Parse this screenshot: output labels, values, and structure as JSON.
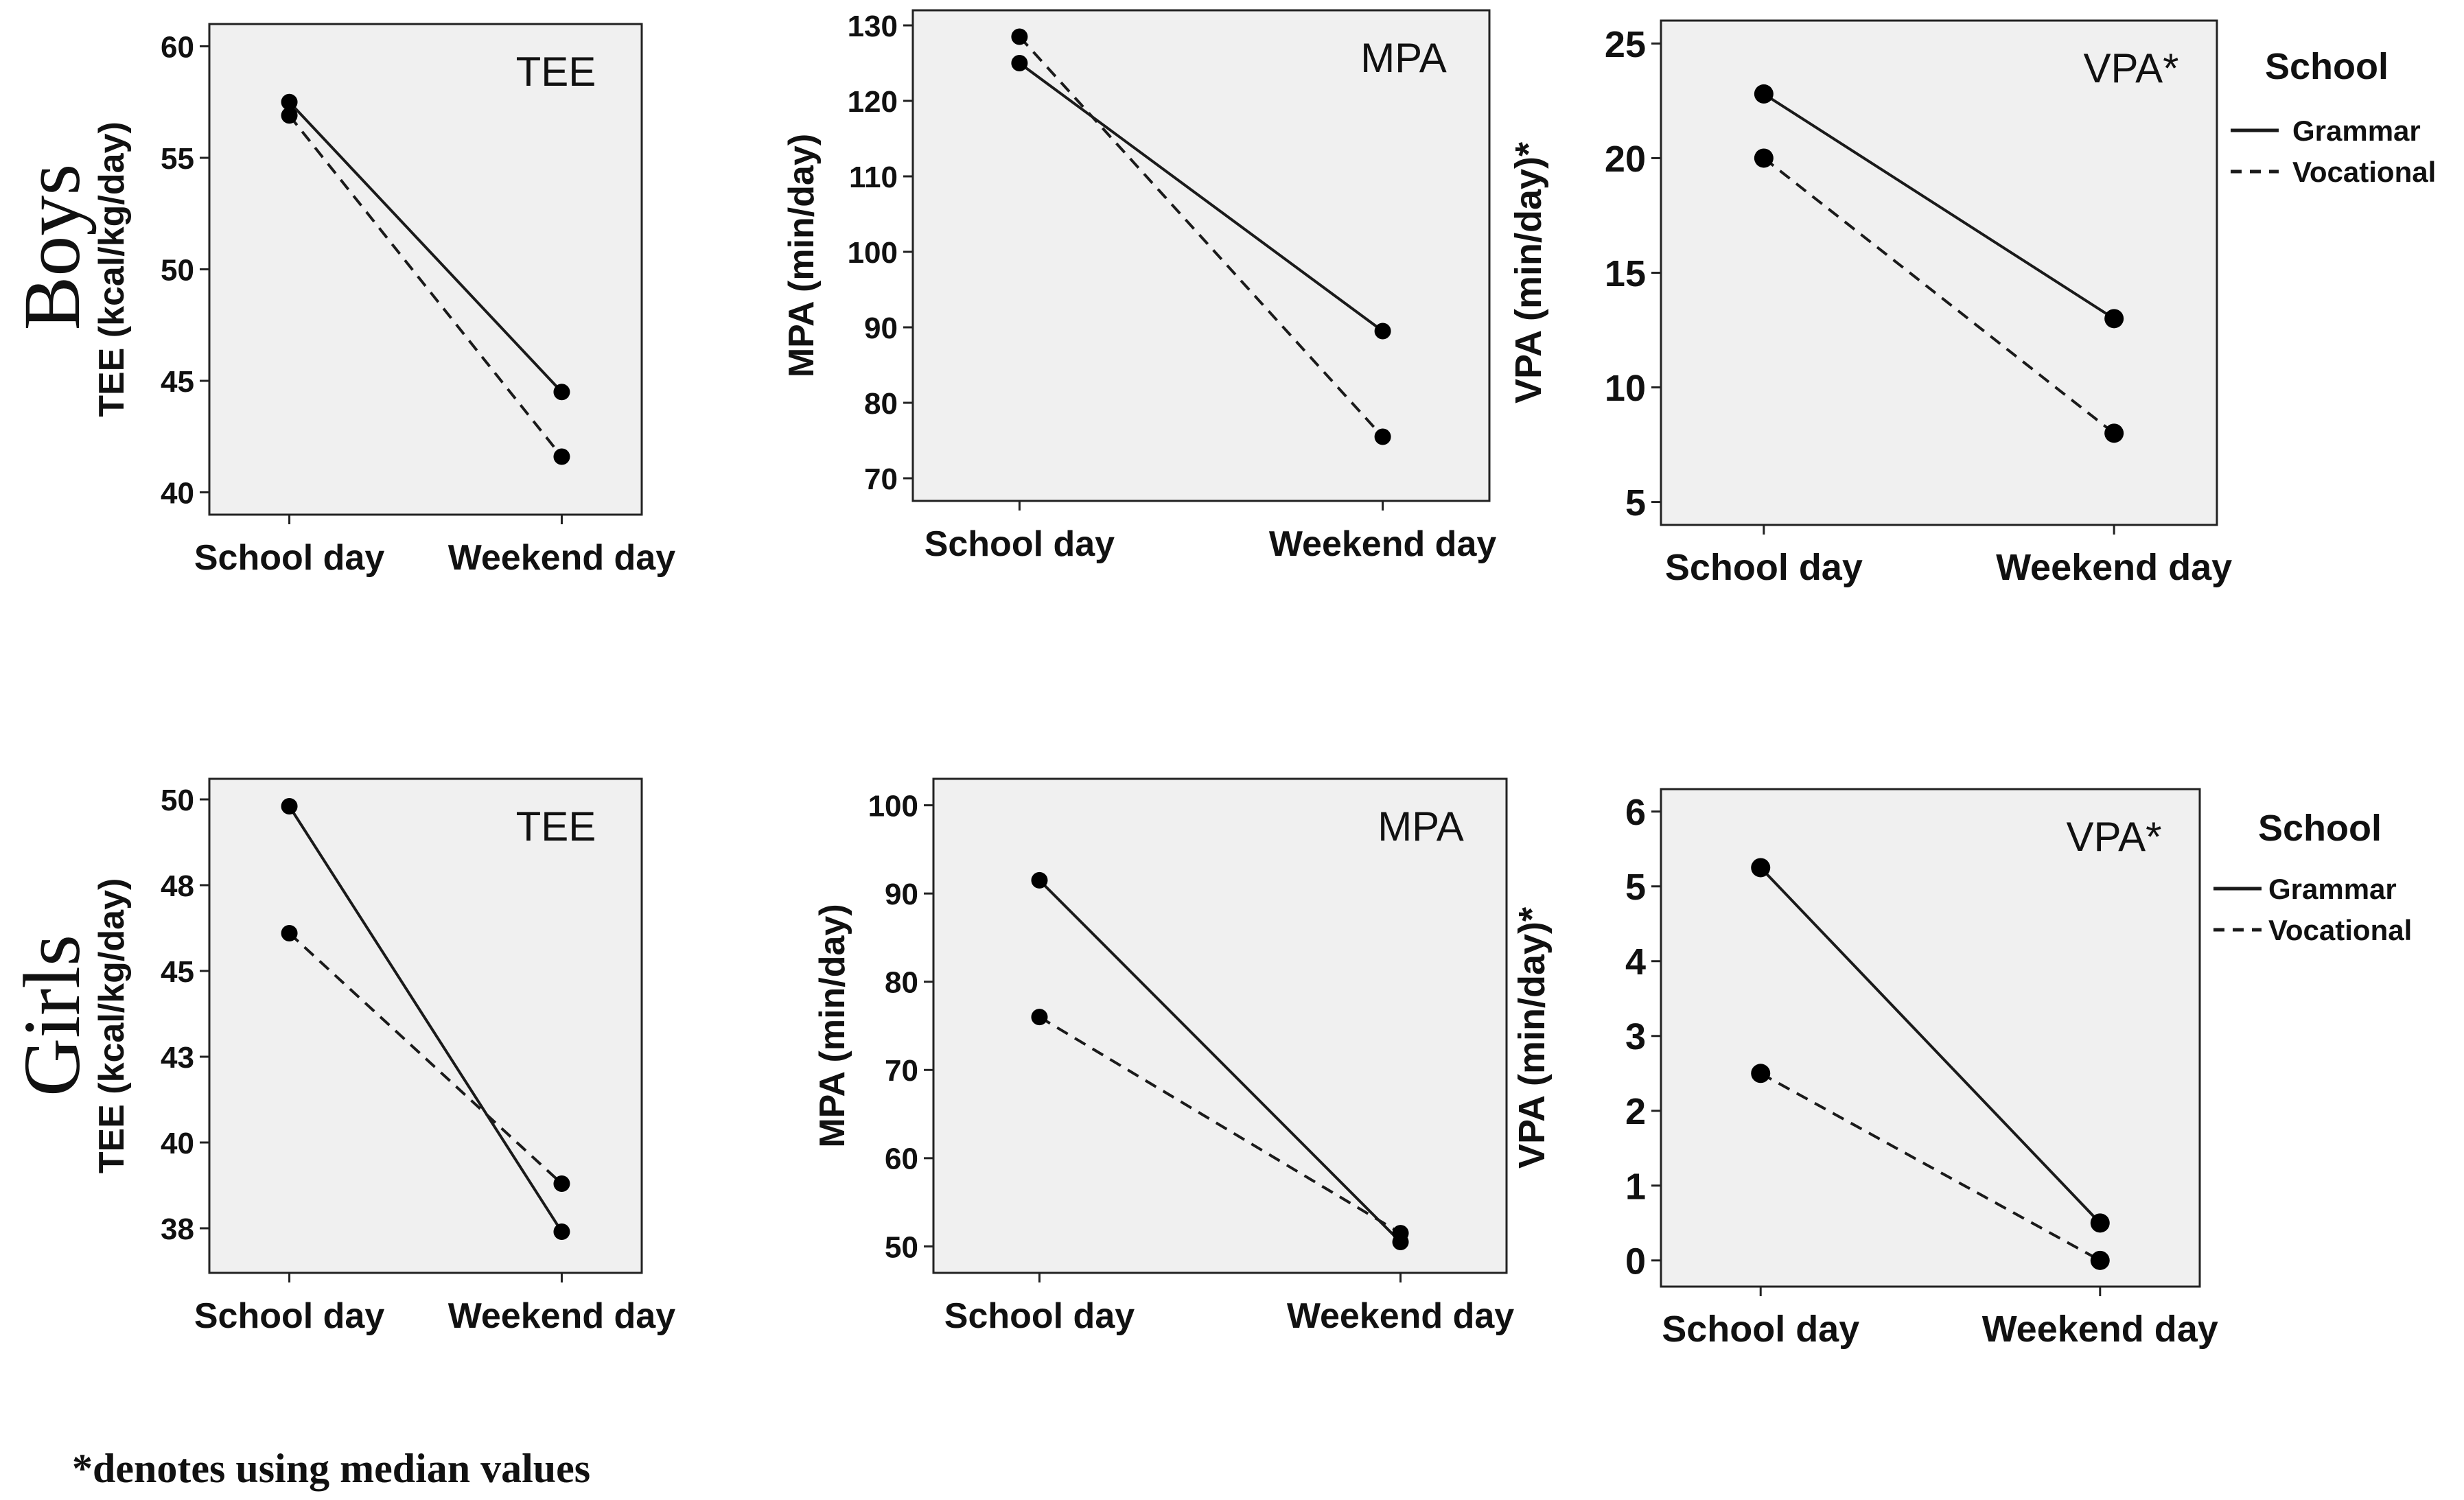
{
  "row_labels": [
    "Boys",
    "Girls"
  ],
  "footnote": "*denotes using median values",
  "legend": {
    "title": "School",
    "entries": [
      {
        "name": "Grammar",
        "style": "solid"
      },
      {
        "name": "Vocational",
        "style": "dashed"
      }
    ]
  },
  "colors": {
    "plot_bg": "#f0f0f0",
    "line": "#1a1a1a",
    "marker": "#000000"
  },
  "chart_data": [
    {
      "id": "boys-tee",
      "type": "line",
      "row": "Boys",
      "title": "TEE",
      "ylabel": "TEE (kcal/kg/day)",
      "categories": [
        "School day",
        "Weekend day"
      ],
      "ylim": [
        39,
        61
      ],
      "yticks": [
        40,
        45,
        50,
        55,
        60
      ],
      "ytick_labels": [
        "40",
        "45",
        "50",
        "55",
        "60"
      ],
      "series": [
        {
          "name": "Grammar",
          "values": [
            57.5,
            44.5
          ]
        },
        {
          "name": "Vocational",
          "values": [
            56.9,
            41.6
          ]
        }
      ]
    },
    {
      "id": "boys-mpa",
      "type": "line",
      "row": "Boys",
      "title": "MPA",
      "ylabel": "MPA (min/day)",
      "categories": [
        "School day",
        "Weekend day"
      ],
      "ylim": [
        67,
        132
      ],
      "yticks": [
        70,
        80,
        90,
        100,
        110,
        120,
        130
      ],
      "ytick_labels": [
        "70",
        "80",
        "90",
        "100",
        "110",
        "120",
        "130"
      ],
      "series": [
        {
          "name": "Grammar",
          "values": [
            125,
            89.5
          ]
        },
        {
          "name": "Vocational",
          "values": [
            128.5,
            75.5
          ]
        }
      ]
    },
    {
      "id": "boys-vpa",
      "type": "line",
      "row": "Boys",
      "title": "VPA*",
      "ylabel": "VPA (min/day)*",
      "categories": [
        "School day",
        "Weekend day"
      ],
      "ylim": [
        4,
        26
      ],
      "yticks": [
        5,
        10,
        15,
        20,
        25
      ],
      "ytick_labels": [
        "5",
        "10",
        "15",
        "20",
        "25"
      ],
      "series": [
        {
          "name": "Grammar",
          "values": [
            22.8,
            13
          ]
        },
        {
          "name": "Vocational",
          "values": [
            20,
            8
          ]
        }
      ]
    },
    {
      "id": "girls-tee",
      "type": "line",
      "row": "Girls",
      "title": "TEE",
      "ylabel": "TEE (kcal/kg/day)",
      "categories": [
        "School day",
        "Weekend day"
      ],
      "ylim": [
        36.2,
        50.6
      ],
      "yticks": [
        37.5,
        40,
        42.5,
        45,
        47.5,
        50
      ],
      "ytick_labels": [
        "38",
        "40",
        "43",
        "45",
        "48",
        "50"
      ],
      "series": [
        {
          "name": "Grammar",
          "values": [
            49.8,
            37.4
          ]
        },
        {
          "name": "Vocational",
          "values": [
            46.1,
            38.8
          ]
        }
      ]
    },
    {
      "id": "girls-mpa",
      "type": "line",
      "row": "Girls",
      "title": "MPA",
      "ylabel": "MPA (min/day)",
      "categories": [
        "School day",
        "Weekend day"
      ],
      "ylim": [
        47,
        103
      ],
      "yticks": [
        50,
        60,
        70,
        80,
        90,
        100
      ],
      "ytick_labels": [
        "50",
        "60",
        "70",
        "80",
        "90",
        "100"
      ],
      "series": [
        {
          "name": "Grammar",
          "values": [
            91.5,
            50.5
          ]
        },
        {
          "name": "Vocational",
          "values": [
            76,
            51.5
          ]
        }
      ]
    },
    {
      "id": "girls-vpa",
      "type": "line",
      "row": "Girls",
      "title": "VPA*",
      "ylabel": "VPA (min/day)*",
      "categories": [
        "School day",
        "Weekend day"
      ],
      "ylim": [
        -0.35,
        6.3
      ],
      "yticks": [
        0,
        1,
        2,
        3,
        4,
        5,
        6
      ],
      "ytick_labels": [
        "0",
        "1",
        "2",
        "3",
        "4",
        "5",
        "6"
      ],
      "series": [
        {
          "name": "Grammar",
          "values": [
            5.25,
            0.5
          ]
        },
        {
          "name": "Vocational",
          "values": [
            2.5,
            0
          ]
        }
      ]
    }
  ]
}
